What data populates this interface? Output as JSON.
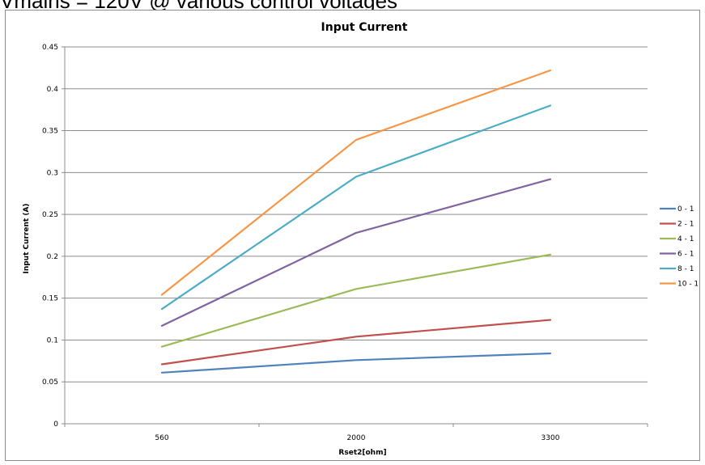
{
  "top_caption": "Vmains = 120V @ various control voltages",
  "chart_data": {
    "type": "line",
    "title": "Input Current",
    "xlabel": "Rset2[ohm]",
    "ylabel": "Input Current (A)",
    "categories": [
      "560",
      "2000",
      "3300"
    ],
    "ylim": [
      0,
      0.45
    ],
    "yticks": [
      "0",
      "0.05",
      "0.1",
      "0.15",
      "0.2",
      "0.25",
      "0.3",
      "0.35",
      "0.4",
      "0.45"
    ],
    "grid": true,
    "legend_position": "right",
    "series": [
      {
        "name": "0 - 1",
        "color": "#4f81bd",
        "values": [
          0.061,
          0.076,
          0.084
        ]
      },
      {
        "name": "2 - 1",
        "color": "#c0504d",
        "values": [
          0.071,
          0.104,
          0.124
        ]
      },
      {
        "name": "4 - 1",
        "color": "#9bbb59",
        "values": [
          0.092,
          0.161,
          0.202
        ]
      },
      {
        "name": "6 - 1",
        "color": "#8064a2",
        "values": [
          0.117,
          0.228,
          0.292
        ]
      },
      {
        "name": "8 - 1",
        "color": "#4bacc6",
        "values": [
          0.137,
          0.295,
          0.38
        ]
      },
      {
        "name": "10 - 1",
        "color": "#f79646",
        "values": [
          0.154,
          0.339,
          0.422
        ]
      }
    ]
  }
}
